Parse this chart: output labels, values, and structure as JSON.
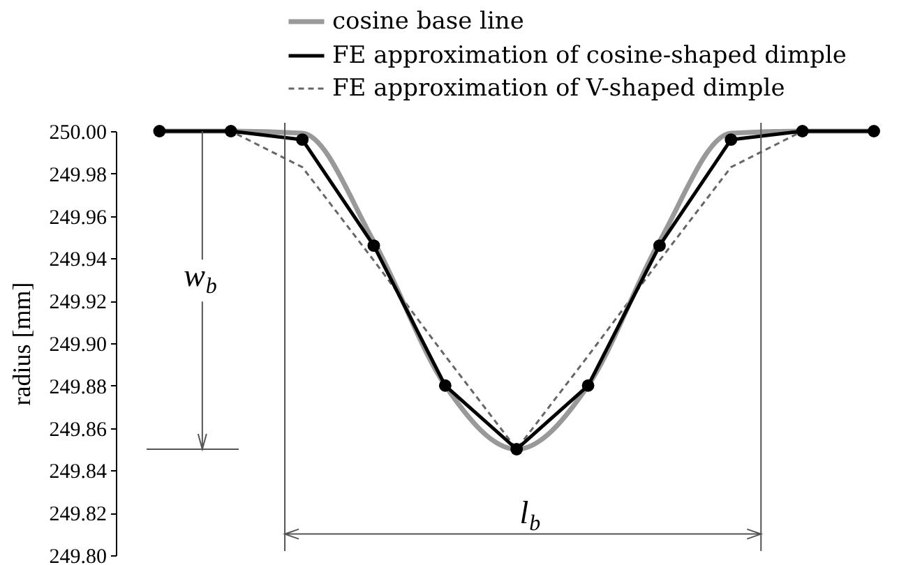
{
  "chart_data": {
    "type": "line",
    "ylabel": "radius [mm]",
    "categories": [
      null,
      null,
      null,
      null,
      null,
      null,
      null,
      null,
      null,
      null,
      null
    ],
    "series": [
      {
        "name": "cosine base line",
        "color": "#999999",
        "values": [
          250,
          250,
          249.999,
          249.948,
          249.88,
          249.85,
          249.88,
          249.948,
          249.999,
          250,
          250
        ]
      },
      {
        "name": "FE approximation of cosine-shaped dimple",
        "color": "#000000",
        "marker": "circle",
        "values": [
          250,
          250,
          249.996,
          249.946,
          249.88,
          249.85,
          249.88,
          249.946,
          249.996,
          250,
          250
        ]
      },
      {
        "name": "FE approximation of V-shaped dimple",
        "color": "#666666",
        "line_style": "dashed",
        "values": [
          250,
          250,
          249.983,
          249.939,
          249.894,
          249.85,
          249.894,
          249.939,
          249.983,
          250,
          250
        ]
      }
    ],
    "ylim": [
      249.8,
      250
    ],
    "yticks": [
      {
        "value": 249.8,
        "label": "249.80"
      },
      249.82,
      249.84,
      249.86,
      249.88,
      {
        "value": 249.9,
        "label": "249.90"
      },
      249.92,
      249.94,
      249.96,
      249.98,
      {
        "value": 250,
        "label": "250.00"
      }
    ],
    "tick_labels": "y",
    "legend": "top",
    "ref_lines": [
      {
        "axis": "y",
        "value": 249.85
      },
      {
        "axis": "y",
        "value": 249.81,
        "label": "l$_{b}$"
      }
    ],
    "annotations": [
      "w$_{b}$"
    ]
  }
}
